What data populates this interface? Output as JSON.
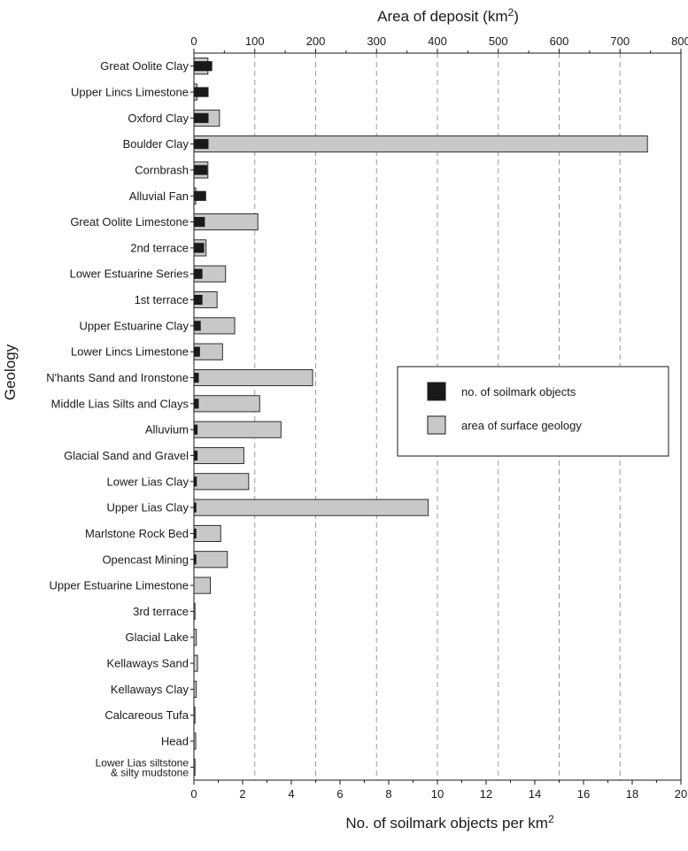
{
  "chart_data": {
    "type": "bar",
    "title": "",
    "ylabel": "Geology",
    "top_axis": {
      "label": "Area of deposit (km",
      "label_sup": "2",
      "label_end": ")",
      "range": [
        0,
        800
      ],
      "ticks": [
        0,
        100,
        200,
        300,
        400,
        500,
        600,
        700,
        800
      ]
    },
    "bottom_axis": {
      "label": "No. of soilmark objects per km",
      "label_sup": "2",
      "range": [
        0,
        20
      ],
      "ticks": [
        0,
        2,
        4,
        6,
        8,
        10,
        12,
        14,
        16,
        18,
        20
      ]
    },
    "grid": "vertical dashed at every 100 km² of area",
    "legend": {
      "placement": "center-right",
      "entries": [
        {
          "label": "no. of soilmark objects",
          "color": "#1a1a1a"
        },
        {
          "label": "area of surface geology",
          "color": "#c8c8c8"
        }
      ]
    },
    "categories": [
      [
        "Great Oolite Clay"
      ],
      [
        "Upper Lincs Limestone"
      ],
      [
        "Oxford Clay"
      ],
      [
        "Boulder Clay"
      ],
      [
        "Cornbrash"
      ],
      [
        "Alluvial Fan"
      ],
      [
        "Great Oolite Limestone"
      ],
      [
        "2nd terrace"
      ],
      [
        "Lower Estuarine Series"
      ],
      [
        "1st terrace"
      ],
      [
        "Upper Estuarine Clay"
      ],
      [
        "Lower Lincs Limestone"
      ],
      [
        "N'hants Sand and Ironstone"
      ],
      [
        "Middle Lias Silts and Clays"
      ],
      [
        "Alluvium"
      ],
      [
        "Glacial Sand and Gravel"
      ],
      [
        "Lower Lias Clay"
      ],
      [
        "Upper Lias Clay"
      ],
      [
        "Marlstone Rock Bed"
      ],
      [
        "Opencast Mining"
      ],
      [
        "Upper Estuarine Limestone"
      ],
      [
        "3rd terrace"
      ],
      [
        "Glacial Lake"
      ],
      [
        "Kellaways Sand"
      ],
      [
        "Kellaways Clay"
      ],
      [
        "Calcareous Tufa"
      ],
      [
        "Head"
      ],
      [
        "Lower Lias siltstone",
        "& silty mudstone"
      ]
    ],
    "series": [
      {
        "name": "area of surface geology",
        "axis": "top",
        "color": "#c8c8c8",
        "values": [
          23,
          5,
          42,
          745,
          23,
          3,
          105,
          20,
          52,
          38,
          67,
          47,
          195,
          108,
          143,
          82,
          90,
          385,
          44,
          55,
          27,
          0.5,
          4,
          6,
          4,
          0.5,
          3,
          0.3
        ]
      },
      {
        "name": "no. of soilmark objects",
        "axis": "bottom",
        "color": "#1a1a1a",
        "values": [
          0.75,
          0.6,
          0.6,
          0.6,
          0.55,
          0.5,
          0.45,
          0.42,
          0.35,
          0.35,
          0.28,
          0.25,
          0.2,
          0.2,
          0.15,
          0.15,
          0.12,
          0.1,
          0.1,
          0.1,
          0,
          0,
          0,
          0,
          0,
          0,
          0,
          0
        ]
      }
    ]
  }
}
